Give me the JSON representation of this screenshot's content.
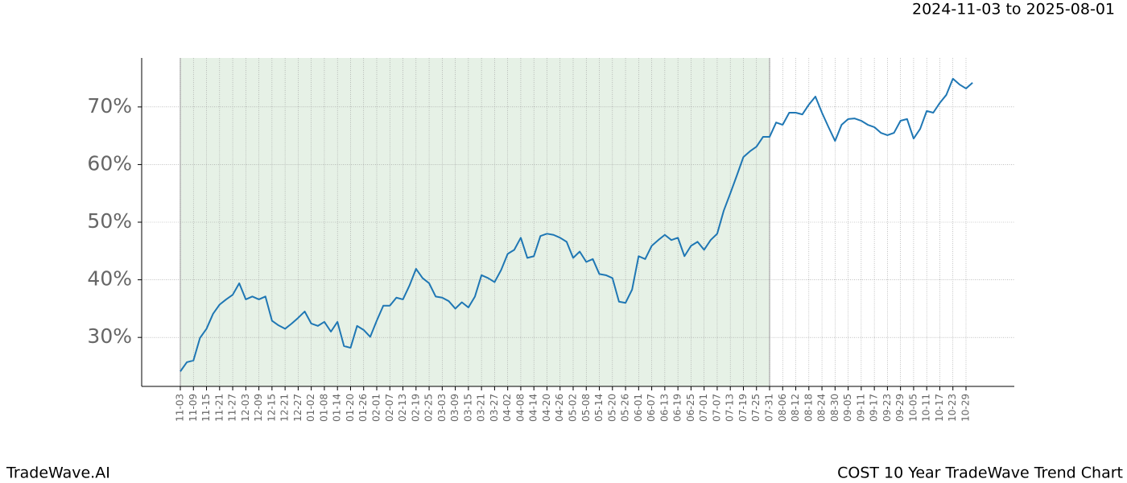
{
  "chart_data": {
    "type": "line",
    "title": "COST 10 Year TradeWave Trend Chart",
    "date_range": "2024-11-03 to 2025-08-01",
    "source": "TradeWave.AI",
    "categories": [
      "11-03",
      null,
      "11-09",
      null,
      "11-15",
      null,
      "11-21",
      null,
      "11-27",
      null,
      "12-03",
      null,
      "12-09",
      null,
      "12-15",
      null,
      "12-21",
      null,
      "12-27",
      null,
      "01-02",
      null,
      "01-08",
      null,
      "01-14",
      null,
      "01-20",
      null,
      "01-26",
      null,
      "02-01",
      null,
      "02-07",
      null,
      "02-13",
      null,
      "02-19",
      null,
      "02-25",
      null,
      "03-03",
      null,
      "03-09",
      null,
      "03-15",
      null,
      "03-21",
      null,
      "03-27",
      null,
      "04-02",
      null,
      "04-08",
      null,
      "04-14",
      null,
      "04-20",
      null,
      "04-26",
      null,
      "05-02",
      null,
      "05-08",
      null,
      "05-14",
      null,
      "05-20",
      null,
      "05-26",
      null,
      "06-01",
      null,
      "06-07",
      null,
      "06-13",
      null,
      "06-19",
      null,
      "06-25",
      null,
      "07-01",
      null,
      "07-07",
      null,
      "07-13",
      null,
      "07-19",
      null,
      "07-25",
      null,
      "07-31",
      null,
      "08-06",
      null,
      "08-12",
      null,
      "08-18",
      null,
      "08-24",
      null,
      "08-30",
      null,
      "09-05",
      null,
      "09-11",
      null,
      "09-17",
      null,
      "09-23",
      null,
      "09-29",
      null,
      "10-05",
      null,
      "10-11",
      null,
      "10-17",
      null,
      "10-23",
      null,
      "10-29",
      null
    ],
    "series": [
      {
        "name": "COST",
        "color": "#1f77b4",
        "values": [
          24.1,
          25.7,
          26.0,
          29.9,
          31.5,
          34.1,
          35.7,
          36.6,
          37.4,
          39.4,
          36.6,
          37.1,
          36.6,
          37.1,
          32.9,
          32.1,
          31.5,
          32.4,
          33.4,
          34.5,
          32.4,
          32.0,
          32.7,
          31.0,
          32.7,
          28.5,
          28.2,
          32.0,
          31.3,
          30.1,
          32.9,
          35.5,
          35.5,
          36.9,
          36.6,
          39.0,
          41.9,
          40.3,
          39.4,
          37.1,
          36.9,
          36.3,
          35.0,
          36.1,
          35.2,
          37.1,
          40.8,
          40.3,
          39.6,
          41.7,
          44.5,
          45.2,
          47.3,
          43.8,
          44.1,
          47.6,
          48.0,
          47.8,
          47.3,
          46.6,
          43.8,
          44.9,
          43.1,
          43.6,
          41.0,
          40.8,
          40.3,
          36.2,
          36.0,
          38.3,
          44.1,
          43.6,
          45.9,
          46.9,
          47.8,
          46.9,
          47.3,
          44.1,
          45.9,
          46.6,
          45.2,
          46.9,
          48.0,
          52.0,
          55.0,
          58.1,
          61.3,
          62.3,
          63.1,
          64.8,
          64.8,
          67.3,
          66.9,
          69.0,
          69.0,
          68.7,
          70.4,
          71.8,
          69.0,
          66.5,
          64.1,
          66.9,
          67.9,
          68.0,
          67.6,
          66.9,
          66.5,
          65.5,
          65.1,
          65.5,
          67.6,
          67.9,
          64.5,
          66.2,
          69.3,
          69.0,
          70.7,
          72.1,
          74.9,
          73.9,
          73.2,
          74.2
        ]
      }
    ],
    "ylim": [
      21.5,
      78.5
    ],
    "yticks": [
      {
        "value": 30,
        "label": "30%"
      },
      {
        "value": 40,
        "label": "40%"
      },
      {
        "value": 50,
        "label": "50%"
      },
      {
        "value": 60,
        "label": "60%"
      },
      {
        "value": 70,
        "label": "70%"
      }
    ],
    "shade": {
      "from": 0,
      "to": 90,
      "color": "#e6f1e6"
    },
    "grid": true
  }
}
